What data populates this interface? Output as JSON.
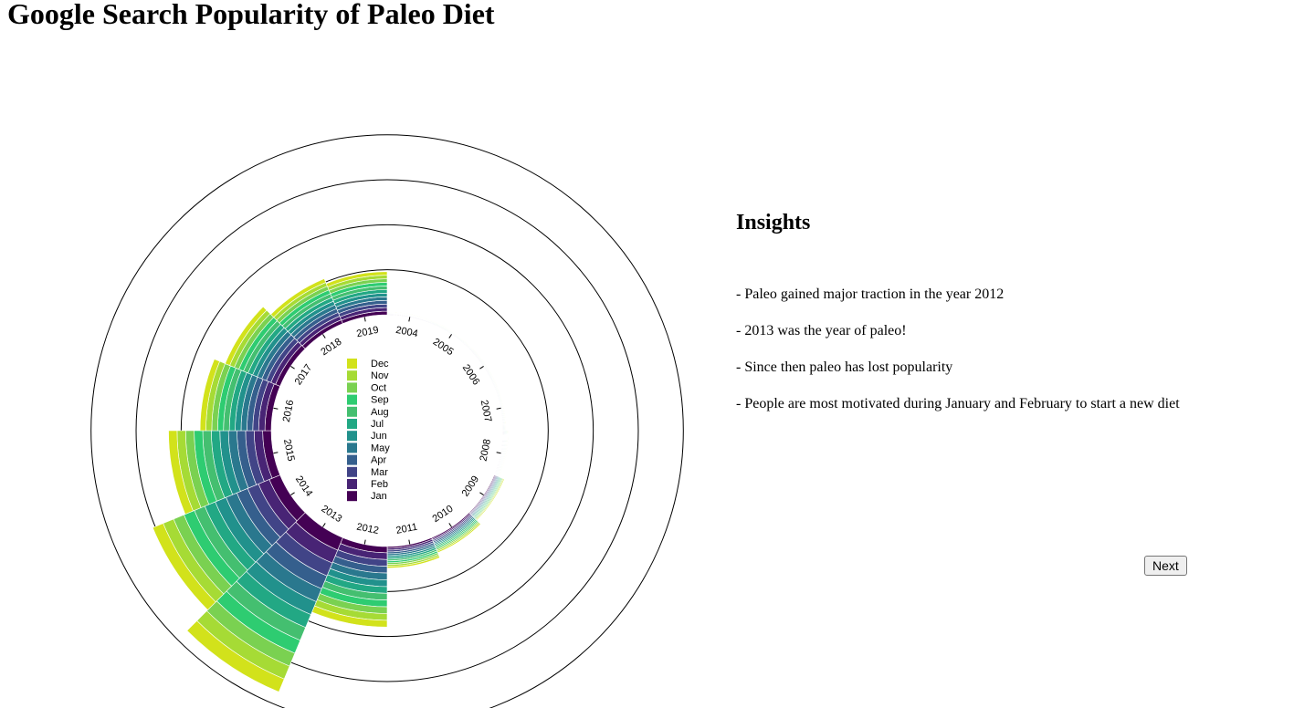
{
  "page": {
    "title": "Google Search Popularity of Paleo Diet"
  },
  "insights": {
    "title": "Insights",
    "items": [
      "- Paleo gained major traction in the year 2012",
      "- 2013 was the year of paleo!",
      "- Since then paleo has lost popularity",
      "- People are most motivated during January and February to start a new diet"
    ]
  },
  "controls": {
    "next_label": "Next"
  },
  "chart_data": {
    "type": "radial-stacked-bar",
    "title": "Google Search Popularity of Paleo Diet",
    "categories": [
      "2004",
      "2005",
      "2006",
      "2007",
      "2008",
      "2009",
      "2010",
      "2011",
      "2012",
      "2013",
      "2014",
      "2015",
      "2016",
      "2017",
      "2018",
      "2019"
    ],
    "series": [
      {
        "name": "Jan",
        "color": "#440154",
        "values": [
          0.5,
          0.5,
          0.5,
          0.5,
          1,
          2,
          3,
          4,
          14,
          30,
          26,
          19,
          14,
          11,
          9,
          8
        ]
      },
      {
        "name": "Feb",
        "color": "#482475",
        "values": [
          0.5,
          0.5,
          0.5,
          0.5,
          1,
          2,
          3,
          4,
          15,
          31,
          26,
          19,
          14,
          11,
          9,
          8
        ]
      },
      {
        "name": "Mar",
        "color": "#414487",
        "values": [
          0.5,
          0.5,
          0.5,
          0.5,
          1,
          2,
          3,
          4,
          15,
          31,
          26,
          19,
          13,
          11,
          9,
          8
        ]
      },
      {
        "name": "Apr",
        "color": "#355f8d",
        "values": [
          0.5,
          0.5,
          0.5,
          0.5,
          1,
          2,
          3,
          4,
          15,
          31,
          26,
          19,
          13,
          11,
          9,
          8
        ]
      },
      {
        "name": "May",
        "color": "#2a788e",
        "values": [
          0.5,
          0.5,
          0.5,
          0.5,
          1,
          2,
          3,
          4,
          15,
          31,
          26,
          19,
          13,
          11,
          9,
          8
        ]
      },
      {
        "name": "Jun",
        "color": "#21918c",
        "values": [
          0.5,
          0.5,
          0.5,
          0.5,
          1,
          2,
          3,
          4,
          15,
          31,
          26,
          19,
          13,
          11,
          9,
          8
        ]
      },
      {
        "name": "Jul",
        "color": "#22a884",
        "values": [
          0.5,
          0.5,
          0.5,
          0.5,
          1,
          2,
          3,
          4,
          15,
          31,
          25,
          19,
          13,
          11,
          9,
          8
        ]
      },
      {
        "name": "Aug",
        "color": "#44bf70",
        "values": [
          0.5,
          0.5,
          0.5,
          0.5,
          1,
          2,
          3,
          4,
          15,
          31,
          25,
          19,
          13,
          11,
          9,
          8
        ]
      },
      {
        "name": "Sep",
        "color": "#2ecc71",
        "values": [
          0.5,
          0.5,
          0.5,
          0.5,
          1,
          2,
          3,
          4,
          15,
          31,
          25,
          19,
          13,
          11,
          9,
          8
        ]
      },
      {
        "name": "Oct",
        "color": "#7ad151",
        "values": [
          0.5,
          0.5,
          0.5,
          0.5,
          1,
          2,
          3,
          4,
          15,
          31,
          25,
          19,
          13,
          11,
          9,
          8
        ]
      },
      {
        "name": "Nov",
        "color": "#a6db35",
        "values": [
          0.5,
          0.5,
          0.5,
          0.5,
          1,
          2,
          3,
          4,
          15,
          31,
          25,
          19,
          13,
          11,
          9,
          8
        ]
      },
      {
        "name": "Dec",
        "color": "#d2e21b",
        "values": [
          0.5,
          0.5,
          0.5,
          0.5,
          1,
          2,
          3,
          4,
          15,
          31,
          25,
          19,
          13,
          11,
          9,
          8
        ]
      }
    ],
    "legend_order": [
      "Dec",
      "Nov",
      "Oct",
      "Sep",
      "Aug",
      "Jul",
      "Jun",
      "May",
      "Apr",
      "Mar",
      "Feb",
      "Jan"
    ],
    "grid_values": [
      100,
      200,
      300,
      400
    ],
    "grid": true,
    "legend_position": "center"
  }
}
